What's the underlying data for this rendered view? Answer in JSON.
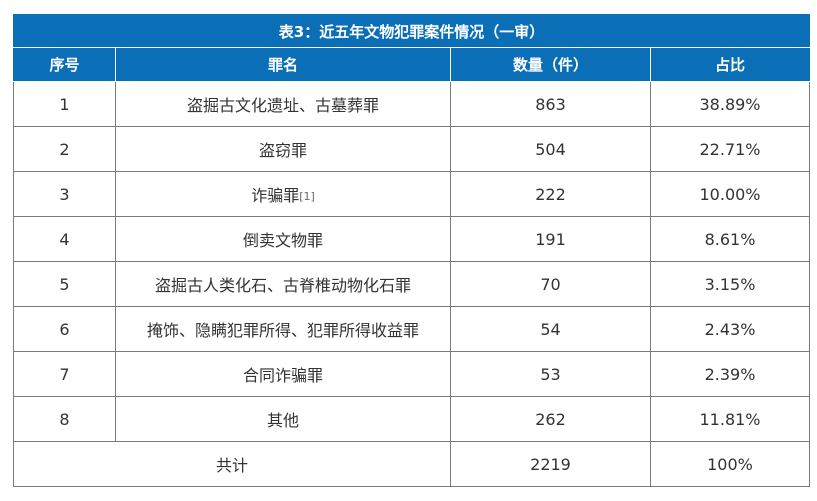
{
  "table": {
    "caption": "表3：近五年文物犯罪案件情况（一审）",
    "headers": [
      "序号",
      "罪名",
      "数量（件）",
      "占比"
    ],
    "rows": [
      {
        "no": "1",
        "crime": "盗掘古文化遗址、古墓葬罪",
        "note": "",
        "count": "863",
        "ratio": "38.89%"
      },
      {
        "no": "2",
        "crime": "盗窃罪",
        "note": "",
        "count": "504",
        "ratio": "22.71%"
      },
      {
        "no": "3",
        "crime": "诈骗罪",
        "note": "[1]",
        "count": "222",
        "ratio": "10.00%"
      },
      {
        "no": "4",
        "crime": "倒卖文物罪",
        "note": "",
        "count": "191",
        "ratio": "8.61%"
      },
      {
        "no": "5",
        "crime": "盗掘古人类化石、古脊椎动物化石罪",
        "note": "",
        "count": "70",
        "ratio": "3.15%"
      },
      {
        "no": "6",
        "crime": "掩饰、隐瞒犯罪所得、犯罪所得收益罪",
        "note": "",
        "count": "54",
        "ratio": "2.43%"
      },
      {
        "no": "7",
        "crime": "合同诈骗罪",
        "note": "",
        "count": "53",
        "ratio": "2.39%"
      },
      {
        "no": "8",
        "crime": "其他",
        "note": "",
        "count": "262",
        "ratio": "11.81%"
      }
    ],
    "total": {
      "label": "共计",
      "count": "2219",
      "ratio": "100%"
    }
  }
}
